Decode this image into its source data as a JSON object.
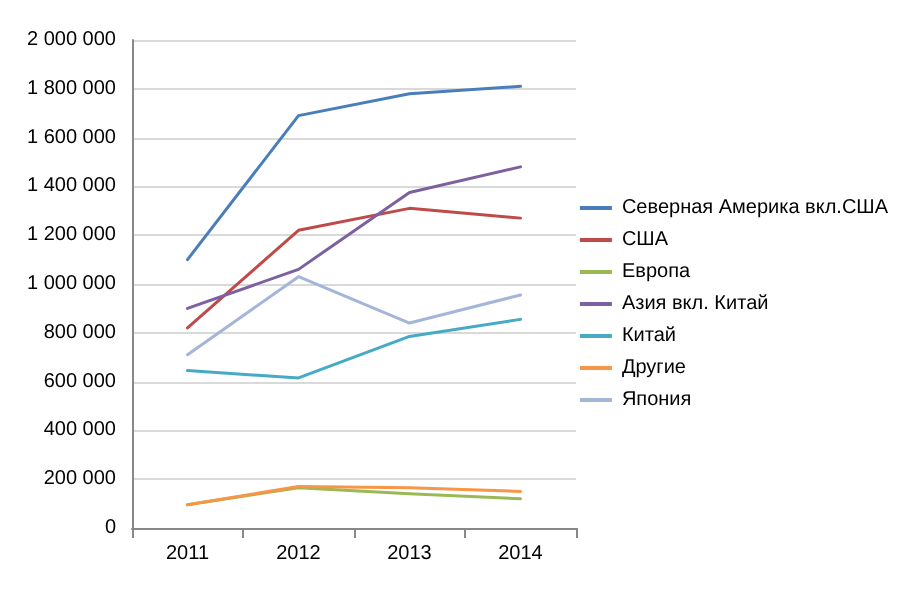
{
  "chart_data": {
    "type": "line",
    "categories": [
      "2011",
      "2012",
      "2013",
      "2014"
    ],
    "series": [
      {
        "name": "Северная Америка вкл.США",
        "color": "#4a7ebb",
        "values": [
          1100000,
          1690000,
          1780000,
          1810000
        ]
      },
      {
        "name": "США",
        "color": "#be4b48",
        "values": [
          820000,
          1220000,
          1310000,
          1270000
        ]
      },
      {
        "name": "Европа",
        "color": "#98b954",
        "values": [
          95000,
          165000,
          140000,
          120000
        ]
      },
      {
        "name": "Азия вкл. Китай",
        "color": "#7d60a0",
        "values": [
          900000,
          1060000,
          1375000,
          1480000
        ]
      },
      {
        "name": "Китай",
        "color": "#46aac5",
        "values": [
          645000,
          615000,
          785000,
          855000
        ]
      },
      {
        "name": "Другие",
        "color": "#f79646",
        "values": [
          95000,
          170000,
          165000,
          150000
        ]
      },
      {
        "name": "Япония",
        "color": "#a5b5d9",
        "values": [
          710000,
          1030000,
          840000,
          955000
        ]
      }
    ],
    "ylim": [
      0,
      2000000
    ],
    "yticks": [
      {
        "value": 0,
        "label": "0"
      },
      {
        "value": 200000,
        "label": "200 000"
      },
      {
        "value": 400000,
        "label": "400 000"
      },
      {
        "value": 600000,
        "label": "600 000"
      },
      {
        "value": 800000,
        "label": "800 000"
      },
      {
        "value": 1000000,
        "label": "1 000 000"
      },
      {
        "value": 1200000,
        "label": "1 200 000"
      },
      {
        "value": 1400000,
        "label": "1 400 000"
      },
      {
        "value": 1600000,
        "label": "1 600 000"
      },
      {
        "value": 1800000,
        "label": "1 800 000"
      },
      {
        "value": 2000000,
        "label": "2 000 000"
      }
    ],
    "grid": "y",
    "legend": "right",
    "marker": "none",
    "line_style": "solid"
  }
}
